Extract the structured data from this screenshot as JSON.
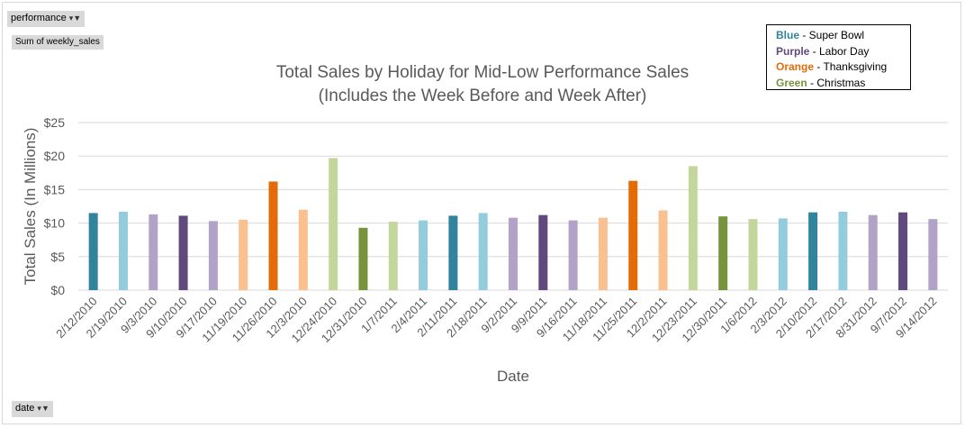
{
  "filters": {
    "performance_label": "performance",
    "values_label": "Sum of weekly_sales",
    "date_label": "date"
  },
  "legend": {
    "items": [
      {
        "keyword": "Blue",
        "text": " - Super Bowl",
        "color": "#31849B"
      },
      {
        "keyword": "Purple",
        "text": " - Labor Day",
        "color": "#604A7B"
      },
      {
        "keyword": "Orange",
        "text": " - Thanksgiving",
        "color": "#E36C09"
      },
      {
        "keyword": "Green",
        "text": " - Christmas",
        "color": "#77933C"
      }
    ]
  },
  "chart_data": {
    "type": "bar",
    "title": "Total Sales by Holiday for Mid-Low Performance Sales",
    "subtitle": "(Includes the Week Before and Week After)",
    "xlabel": "Date",
    "ylabel": "Total Sales (In Millions)",
    "ylim": [
      0,
      25
    ],
    "yticks": [
      {
        "value": 0,
        "label": "$0"
      },
      {
        "value": 5,
        "label": "$5"
      },
      {
        "value": 10,
        "label": "$10"
      },
      {
        "value": 15,
        "label": "$15"
      },
      {
        "value": 20,
        "label": "$20"
      },
      {
        "value": 25,
        "label": "$25"
      }
    ],
    "grid": true,
    "categories": [
      "2/12/2010",
      "2/19/2010",
      "9/3/2010",
      "9/10/2010",
      "9/17/2010",
      "11/19/2010",
      "11/26/2010",
      "12/3/2010",
      "12/24/2010",
      "12/31/2010",
      "1/7/2011",
      "2/4/2011",
      "2/11/2011",
      "2/18/2011",
      "9/2/2011",
      "9/9/2011",
      "9/16/2011",
      "11/18/2011",
      "11/25/2011",
      "12/2/2011",
      "12/23/2011",
      "12/30/2011",
      "1/6/2012",
      "2/3/2012",
      "2/10/2012",
      "2/17/2012",
      "8/31/2012",
      "9/7/2012",
      "9/14/2012"
    ],
    "values": [
      11.5,
      11.7,
      11.3,
      11.1,
      10.3,
      10.5,
      16.2,
      12.0,
      19.7,
      9.3,
      10.2,
      10.4,
      11.1,
      11.5,
      10.8,
      11.2,
      10.4,
      10.8,
      16.3,
      11.9,
      18.5,
      11.0,
      10.6,
      10.7,
      11.6,
      11.7,
      11.2,
      11.6,
      10.6
    ],
    "colors": [
      "#31849B",
      "#93CDDD",
      "#B3A2C7",
      "#604A7B",
      "#B3A2C7",
      "#FAC090",
      "#E36C09",
      "#FAC090",
      "#C3D69B",
      "#77933C",
      "#C3D69B",
      "#93CDDD",
      "#31849B",
      "#93CDDD",
      "#B3A2C7",
      "#604A7B",
      "#B3A2C7",
      "#FAC090",
      "#E36C09",
      "#FAC090",
      "#C3D69B",
      "#77933C",
      "#C3D69B",
      "#93CDDD",
      "#31849B",
      "#93CDDD",
      "#B3A2C7",
      "#604A7B",
      "#B3A2C7"
    ]
  }
}
